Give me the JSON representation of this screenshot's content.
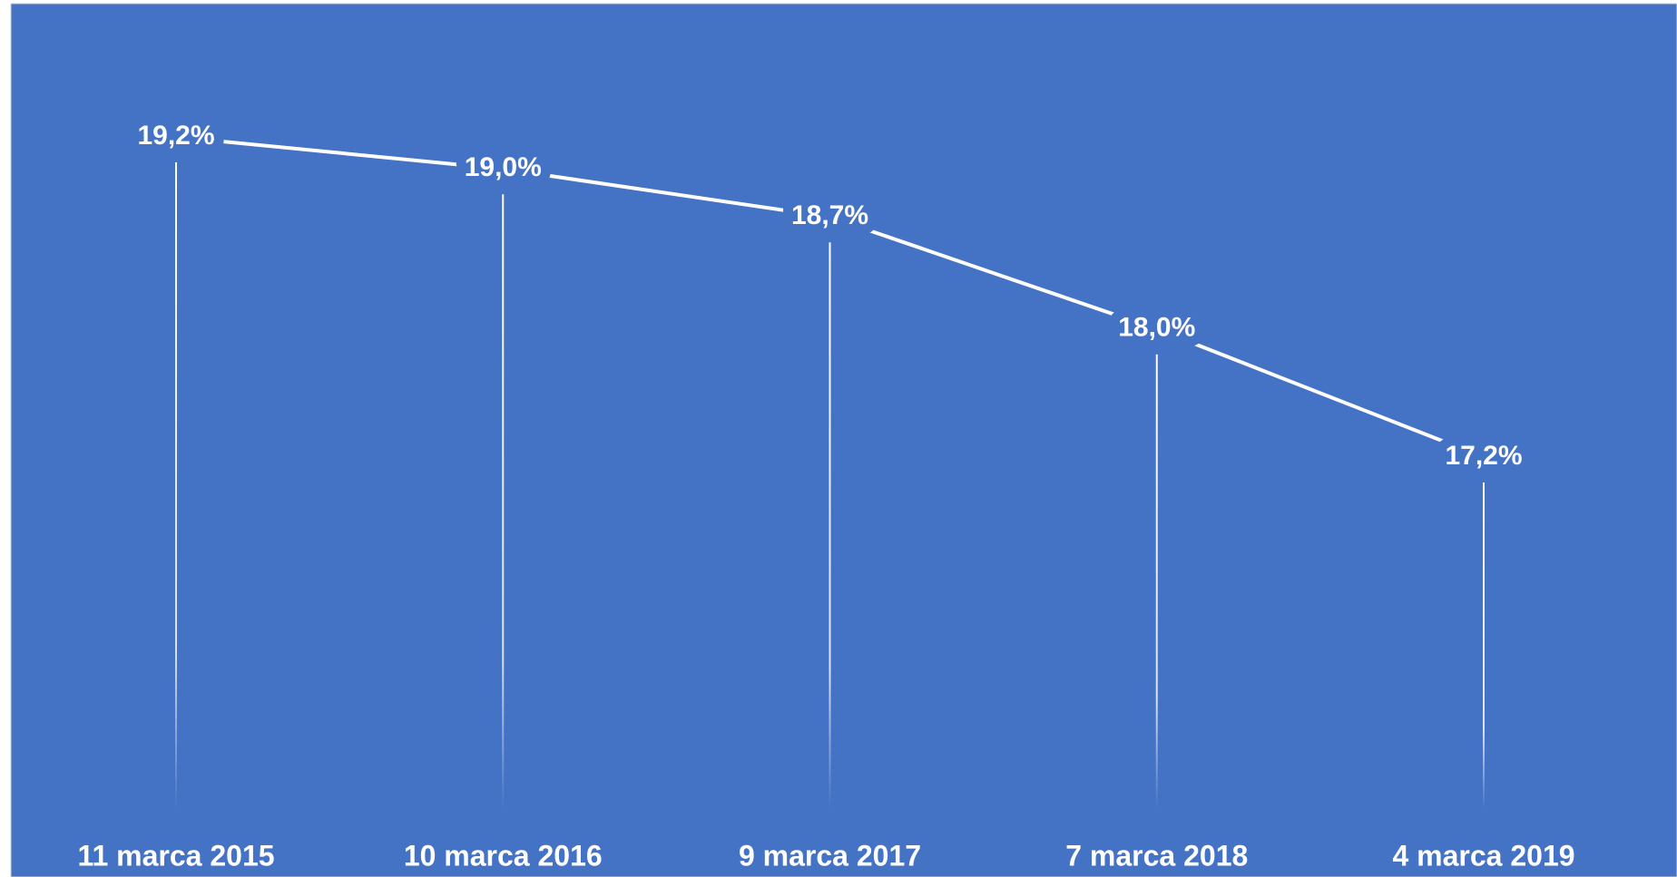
{
  "chart_data": {
    "type": "line",
    "categories": [
      "11 marca 2015",
      "10 marca 2016",
      "9 marca 2017",
      "7 marca 2018",
      "4 marca 2019"
    ],
    "values": [
      19.2,
      19.0,
      18.7,
      18.0,
      17.2
    ],
    "value_labels": [
      "19,2%",
      "19,0%",
      "18,7%",
      "18,0%",
      "17,2%"
    ],
    "color": "#ffffff",
    "background": "#4472c4",
    "drop_lines": true
  }
}
